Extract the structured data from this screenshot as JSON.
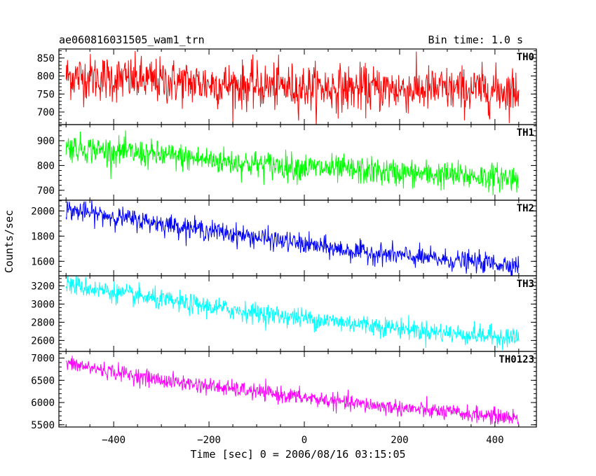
{
  "header": {
    "title": "ae060816031505_wam1_trn",
    "bin_time": "Bin time: 1.0 s"
  },
  "chart_data": {
    "type": "line",
    "title": "ae060816031505_wam1_trn",
    "xlabel": "Time [sec] 0 = 2006/08/16 03:15:05",
    "ylabel": "Counts/sec",
    "xlim": [
      -515,
      487
    ],
    "xticks": [
      -400,
      -200,
      0,
      200,
      400
    ],
    "x_range": [
      -500,
      450
    ],
    "bin_seconds": 1.0,
    "grid": false,
    "legend": "none",
    "panels": [
      {
        "name": "TH0",
        "color": "#ff0000",
        "ylim": [
          665,
          875
        ],
        "yticks": [
          700,
          750,
          800,
          850
        ],
        "trend": [
          [
            -500,
            800
          ],
          [
            -300,
            785
          ],
          [
            -100,
            772
          ],
          [
            100,
            765
          ],
          [
            300,
            762
          ],
          [
            450,
            760
          ]
        ],
        "noise_sd": 32
      },
      {
        "name": "TH1",
        "color": "#00ff00",
        "ylim": [
          660,
          965
        ],
        "yticks": [
          700,
          800,
          900
        ],
        "trend": [
          [
            -500,
            875
          ],
          [
            -300,
            840
          ],
          [
            -100,
            805
          ],
          [
            100,
            780
          ],
          [
            300,
            760
          ],
          [
            450,
            750
          ]
        ],
        "noise_sd": 28
      },
      {
        "name": "TH2",
        "color": "#0000ff",
        "ylim": [
          1485,
          2085
        ],
        "yticks": [
          1600,
          1800,
          2000
        ],
        "trend": [
          [
            -500,
            2010
          ],
          [
            -300,
            1900
          ],
          [
            -100,
            1790
          ],
          [
            100,
            1680
          ],
          [
            300,
            1610
          ],
          [
            450,
            1570
          ]
        ],
        "noise_sd": 40
      },
      {
        "name": "TH3",
        "color": "#00ffff",
        "ylim": [
          2480,
          3310
        ],
        "yticks": [
          2600,
          2800,
          3000,
          3200
        ],
        "trend": [
          [
            -500,
            3220
          ],
          [
            -300,
            3040
          ],
          [
            -100,
            2900
          ],
          [
            100,
            2790
          ],
          [
            300,
            2680
          ],
          [
            450,
            2630
          ]
        ],
        "noise_sd": 55
      },
      {
        "name": "TH0123",
        "color": "#ff00ff",
        "ylim": [
          5450,
          7150
        ],
        "yticks": [
          5500,
          6000,
          6500,
          7000
        ],
        "trend": [
          [
            -500,
            6880
          ],
          [
            -300,
            6500
          ],
          [
            -100,
            6240
          ],
          [
            100,
            5980
          ],
          [
            300,
            5780
          ],
          [
            450,
            5650
          ]
        ],
        "noise_sd": 90
      }
    ]
  }
}
